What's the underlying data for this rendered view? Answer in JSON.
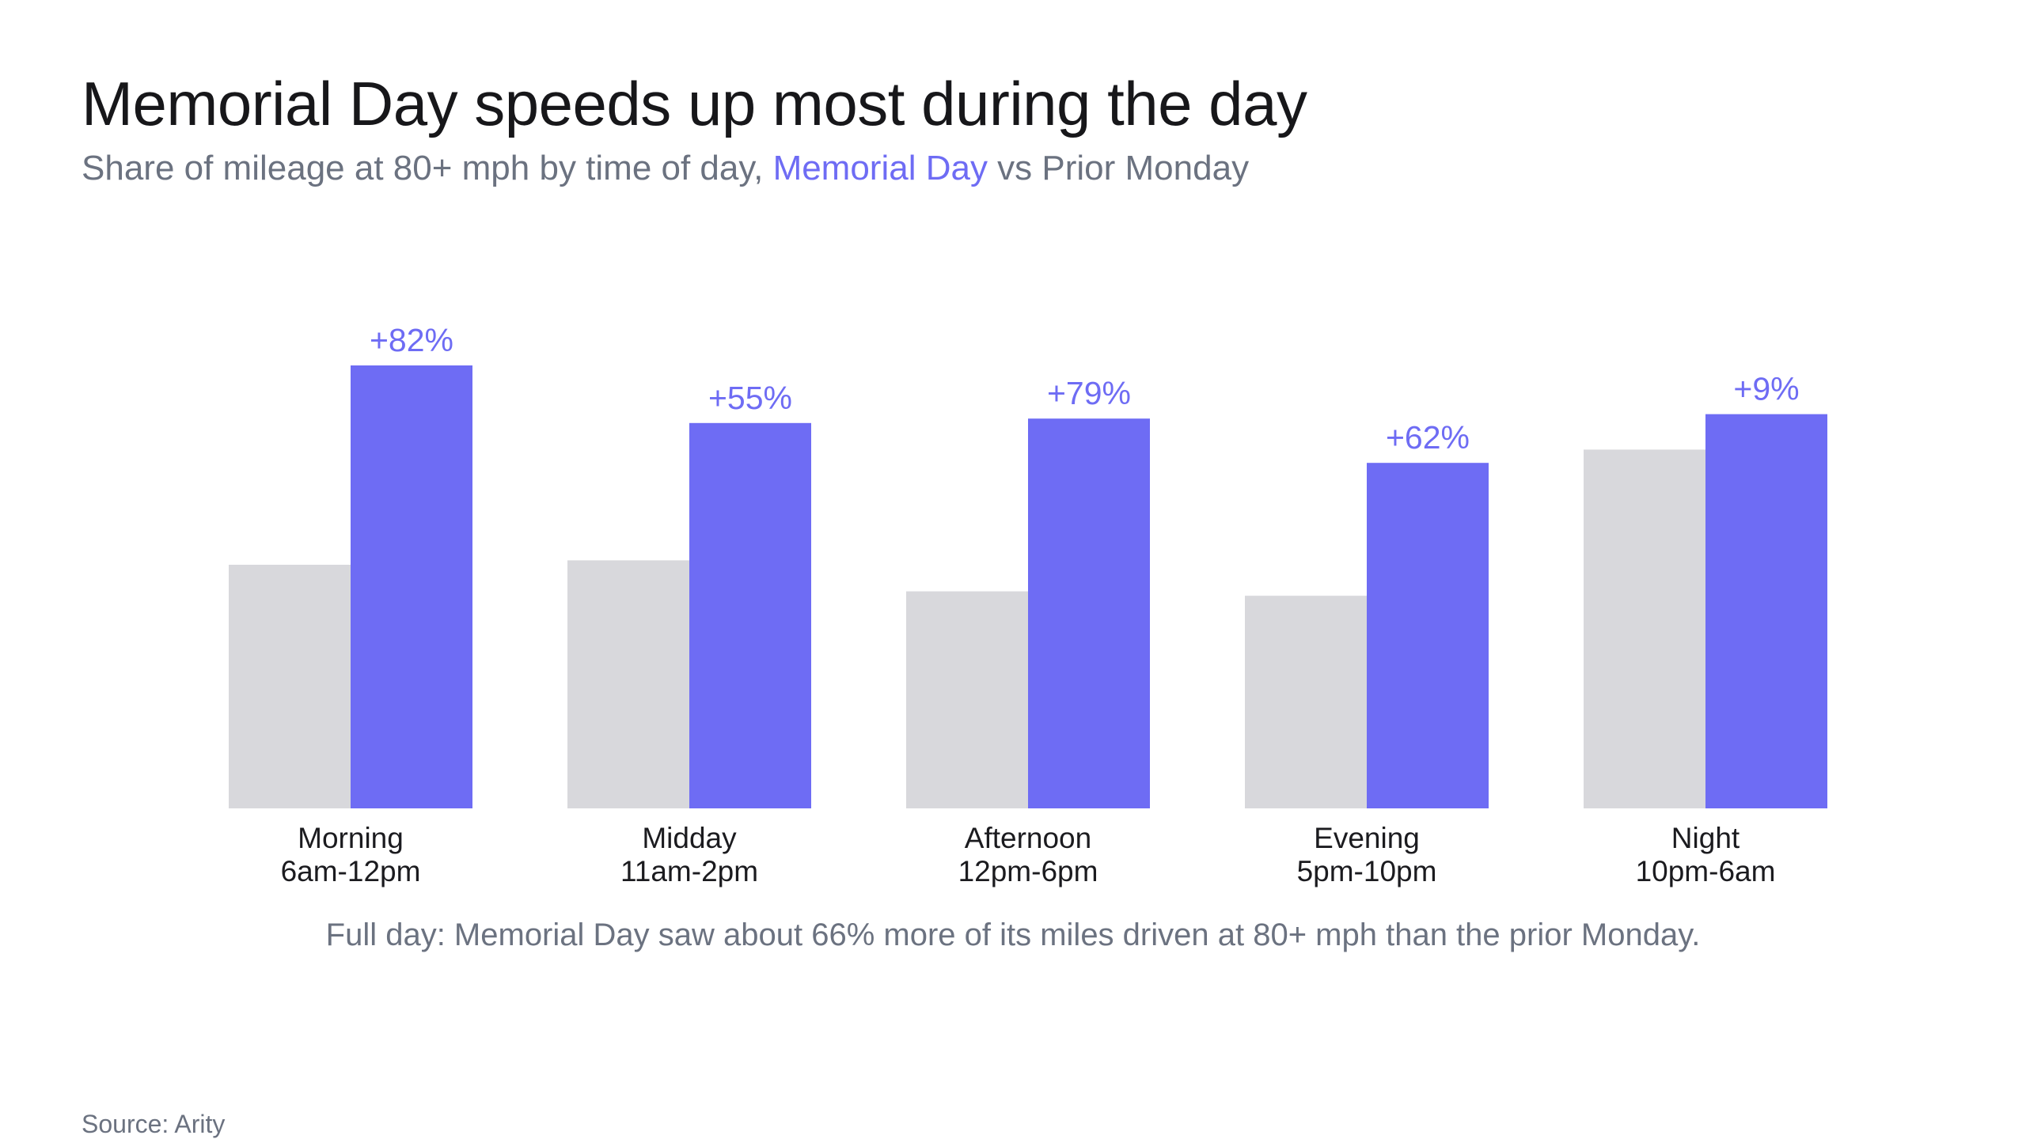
{
  "title": "Memorial Day speeds up most during the day",
  "subtitle": {
    "prefix": "Share of mileage at 80+ mph by time of day, ",
    "series_a": "Memorial Day",
    "joiner": " vs ",
    "series_b": "Prior Monday"
  },
  "colors": {
    "memorial_day": "#6e6cf4",
    "prior_monday": "#d8d8dc"
  },
  "chart_data": {
    "type": "bar",
    "categories": [
      [
        "Morning",
        "6am-12pm"
      ],
      [
        "Midday",
        "11am-2pm"
      ],
      [
        "Afternoon",
        "12pm-6pm"
      ],
      [
        "Evening",
        "5pm-10pm"
      ],
      [
        "Night",
        "10pm-6am"
      ]
    ],
    "series": [
      {
        "name": "Prior Monday",
        "color": "#d8d8dc",
        "values": [
          0.55,
          0.56,
          0.49,
          0.48,
          0.81
        ]
      },
      {
        "name": "Memorial Day",
        "color": "#6e6cf4",
        "values": [
          1.0,
          0.87,
          0.88,
          0.78,
          0.89
        ]
      }
    ],
    "data_labels": [
      "+82%",
      "+55%",
      "+79%",
      "+62%",
      "+9%"
    ],
    "ylim": [
      0,
      1
    ],
    "y_axis_shown": false,
    "grid": false
  },
  "note": "Full day: Memorial Day saw about 66% more of its miles driven at 80+ mph than the prior Monday.",
  "source": "Source: Arity"
}
